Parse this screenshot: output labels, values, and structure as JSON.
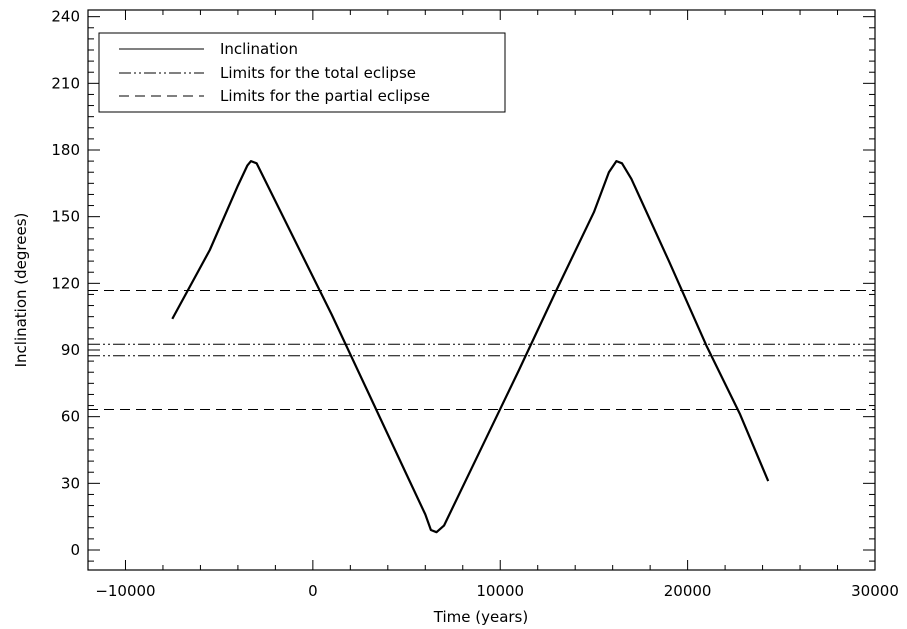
{
  "chart_data": {
    "type": "line",
    "xlabel": "Time (years)",
    "ylabel": "Inclination (degrees)",
    "xlim": [
      -12000,
      30000
    ],
    "ylim": [
      -9,
      243
    ],
    "xticks": [
      -10000,
      0,
      10000,
      20000,
      30000
    ],
    "xtick_labels": [
      "−10000",
      "0",
      "10000",
      "20000",
      "30000"
    ],
    "yticks": [
      0,
      30,
      60,
      90,
      120,
      150,
      180,
      210,
      240
    ],
    "ytick_labels": [
      "0",
      "30",
      "60",
      "90",
      "120",
      "150",
      "180",
      "210",
      "240"
    ],
    "grid": false,
    "legend_position": "top-left",
    "legend": [
      {
        "label": "Inclination",
        "style": "solid"
      },
      {
        "label": "Limits for the total eclipse",
        "style": "dash-dot-dot"
      },
      {
        "label": "Limits for the partial eclipse",
        "style": "dashed"
      }
    ],
    "series": [
      {
        "name": "Inclination",
        "style": "solid",
        "x": [
          -7500,
          -5500,
          -4000,
          -3500,
          -3300,
          -3000,
          -1000,
          1000,
          3000,
          5000,
          6000,
          6300,
          6600,
          7000,
          9000,
          11000,
          13000,
          15000,
          15800,
          16200,
          16500,
          17000,
          19000,
          21000,
          22800,
          24300
        ],
        "y": [
          104,
          135,
          164,
          173,
          175,
          174,
          140,
          106,
          70,
          34,
          16,
          9,
          8,
          11,
          46,
          81,
          117,
          152,
          170,
          175,
          174,
          167,
          130,
          92,
          61,
          31
        ]
      },
      {
        "name": "Limits for the total eclipse",
        "style": "dash-dot-dot",
        "y_const": 92.6
      },
      {
        "name": "Limits for the total eclipse",
        "style": "dash-dot-dot",
        "y_const": 87.4
      },
      {
        "name": "Limits for the partial eclipse",
        "style": "dashed",
        "y_const": 116.8
      },
      {
        "name": "Limits for the partial eclipse",
        "style": "dashed",
        "y_const": 63.2
      }
    ]
  }
}
